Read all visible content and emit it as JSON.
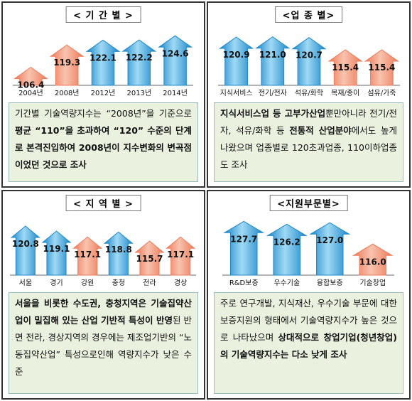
{
  "colors": {
    "blue": "#1e88c9",
    "blue_light": "#9fd9f5",
    "salmon": "#ee7b5a",
    "salmon_light": "#f8c3ae",
    "desc_bg": "#eaf2df"
  },
  "panels": [
    {
      "id": "period",
      "title": "< 기 간 별 >",
      "chart_type": "bar",
      "categories": [
        "2004년",
        "2008년",
        "2012년",
        "2013년",
        "2014년"
      ],
      "values": [
        106.4,
        119.3,
        122.1,
        122.2,
        124.6
      ],
      "value_labels": [
        "106.4",
        "119.3",
        "122.1",
        "122.2",
        "124.6"
      ],
      "colors": [
        "salmon",
        "salmon",
        "blue",
        "blue",
        "blue"
      ],
      "ylim": [
        96,
        128
      ],
      "description": [
        {
          "t": "기간별 기술역량지수는 “2008년”을 기준으로 ",
          "b": false
        },
        {
          "t": "평균 “110”을 초과하여 “120” 수준의 단계로 본격진입하여 2008년이 지수변화의 변곡점이었던 것으로 조사",
          "b": true
        }
      ]
    },
    {
      "id": "industry",
      "title": "<업 종 별>",
      "chart_type": "bar",
      "categories": [
        "지식서비스",
        "전기/전자",
        "석유/화학",
        "목재/종이",
        "섬유/가죽"
      ],
      "values": [
        120.9,
        121.0,
        120.7,
        115.4,
        115.4
      ],
      "value_labels": [
        "120.9",
        "121.0",
        "120.7",
        "115.4",
        "115.4"
      ],
      "colors": [
        "blue",
        "blue",
        "blue",
        "salmon",
        "salmon"
      ],
      "ylim": [
        100,
        124
      ],
      "description": [
        {
          "t": "지식서비스업 등 고부가산업",
          "b": true
        },
        {
          "t": "뿐만아니라 전기/전자, 석유/화학 등 ",
          "b": false
        },
        {
          "t": "전통적 산업분야",
          "b": true
        },
        {
          "t": "에서도 높게 나왔으며 업종별로 120초과업종, 110이하업종도 조사",
          "b": false
        }
      ]
    },
    {
      "id": "region",
      "title": "< 지 역 별 >",
      "chart_type": "bar",
      "categories": [
        "서울",
        "경기",
        "강원",
        "충청",
        "전라",
        "경상"
      ],
      "values": [
        120.8,
        119.1,
        117.1,
        118.8,
        115.7,
        117.1
      ],
      "value_labels": [
        "120.8",
        "119.1",
        "117.1",
        "118.8",
        "115.7",
        "117.1"
      ],
      "colors": [
        "blue",
        "blue",
        "salmon",
        "blue",
        "salmon",
        "salmon"
      ],
      "ylim": [
        104,
        123
      ],
      "description": [
        {
          "t": "서울을 비롯한 수도권, 충청지역은 기술집약산업이 밀집해 있는 산업 기반적 특성이 반영",
          "b": true
        },
        {
          "t": "된 반면 전라, 경상지역의 경우에는 제조업기반의 “노동집약산업” 특성으로인해 역량지수가 낮은 수준",
          "b": false
        }
      ]
    },
    {
      "id": "support",
      "title": "<지원부문별>",
      "chart_type": "bar",
      "categories": [
        "R&D보증",
        "우수기술",
        "융합보증",
        "기술창업"
      ],
      "values": [
        127.7,
        126.2,
        127.0,
        116.0
      ],
      "value_labels": [
        "127.7",
        "126.2",
        "127.0",
        "116.0"
      ],
      "colors": [
        "blue",
        "blue",
        "blue",
        "salmon"
      ],
      "ylim": [
        100,
        130
      ],
      "description": [
        {
          "t": "주로 연구개발, 지식재산, 우수기술 부문에 대한 보증지원의 형태에서 기술역량지수가 높은 것으로 나타났으며 ",
          "b": false
        },
        {
          "t": "상대적으로 창업기업(청년창업)의 기술역량지수는 다소 낮게 조사",
          "b": true
        }
      ]
    }
  ],
  "chart_data": [
    {
      "type": "bar",
      "title": "< 기 간 별 >",
      "categories": [
        "2004년",
        "2008년",
        "2012년",
        "2013년",
        "2014년"
      ],
      "values": [
        106.4,
        119.3,
        122.1,
        122.2,
        124.6
      ],
      "xlabel": "",
      "ylabel": ""
    },
    {
      "type": "bar",
      "title": "<업 종 별>",
      "categories": [
        "지식서비스",
        "전기/전자",
        "석유/화학",
        "목재/종이",
        "섬유/가죽"
      ],
      "values": [
        120.9,
        121.0,
        120.7,
        115.4,
        115.4
      ],
      "xlabel": "",
      "ylabel": ""
    },
    {
      "type": "bar",
      "title": "< 지 역 별 >",
      "categories": [
        "서울",
        "경기",
        "강원",
        "충청",
        "전라",
        "경상"
      ],
      "values": [
        120.8,
        119.1,
        117.1,
        118.8,
        115.7,
        117.1
      ],
      "xlabel": "",
      "ylabel": ""
    },
    {
      "type": "bar",
      "title": "<지원부문별>",
      "categories": [
        "R&D보증",
        "우수기술",
        "융합보증",
        "기술창업"
      ],
      "values": [
        127.7,
        126.2,
        127.0,
        116.0
      ],
      "xlabel": "",
      "ylabel": ""
    }
  ]
}
